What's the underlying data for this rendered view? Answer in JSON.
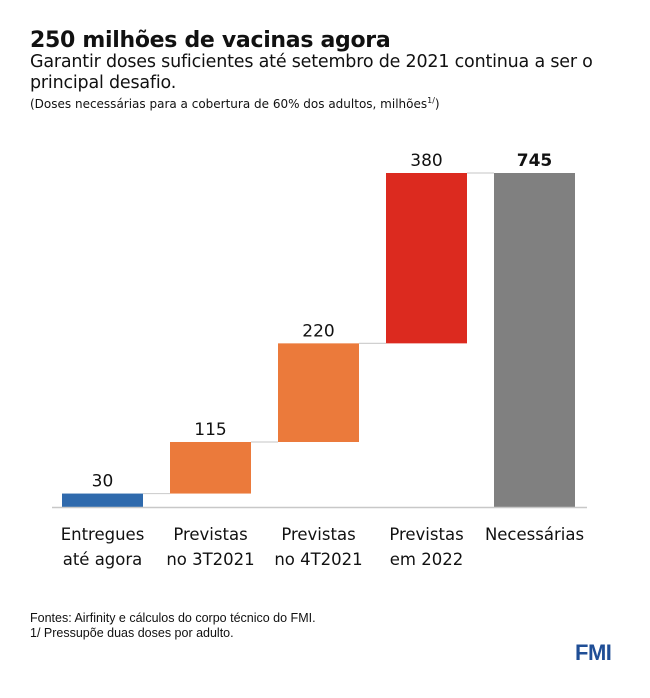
{
  "header": {
    "title": "250 milhões de vacinas agora",
    "subtitle": "Garantir doses suficientes até setembro de 2021 continua a ser o principal desafio.",
    "note": "(Doses necessárias para a cobertura de 60% dos adultos, milhões",
    "note_sup": "1/",
    "note_close": ")"
  },
  "chart_data": {
    "type": "waterfall",
    "categories": [
      [
        "Entregues",
        "até agora"
      ],
      [
        "Previstas",
        "no 3T2021"
      ],
      [
        "Previstas",
        "no 4T2021"
      ],
      [
        "Previstas",
        "em 2022"
      ],
      [
        "Necessárias"
      ]
    ],
    "values": [
      30,
      115,
      220,
      380,
      745
    ],
    "data_labels": [
      "30",
      "115",
      "220",
      "380",
      "745"
    ],
    "is_total": [
      false,
      false,
      false,
      false,
      true
    ],
    "colors": [
      "#2f6aad",
      "#eb7a3b",
      "#eb7a3b",
      "#dc2a1f",
      "#808080"
    ],
    "ylim": [
      0,
      745
    ],
    "grid": false,
    "connector_color": "#d0d0d0"
  },
  "footer": {
    "source": "Fontes: Airfinity e cálculos do corpo técnico do FMI.",
    "footnote": "1/ Pressupõe duas doses por adulto.",
    "logo": "FMI"
  }
}
